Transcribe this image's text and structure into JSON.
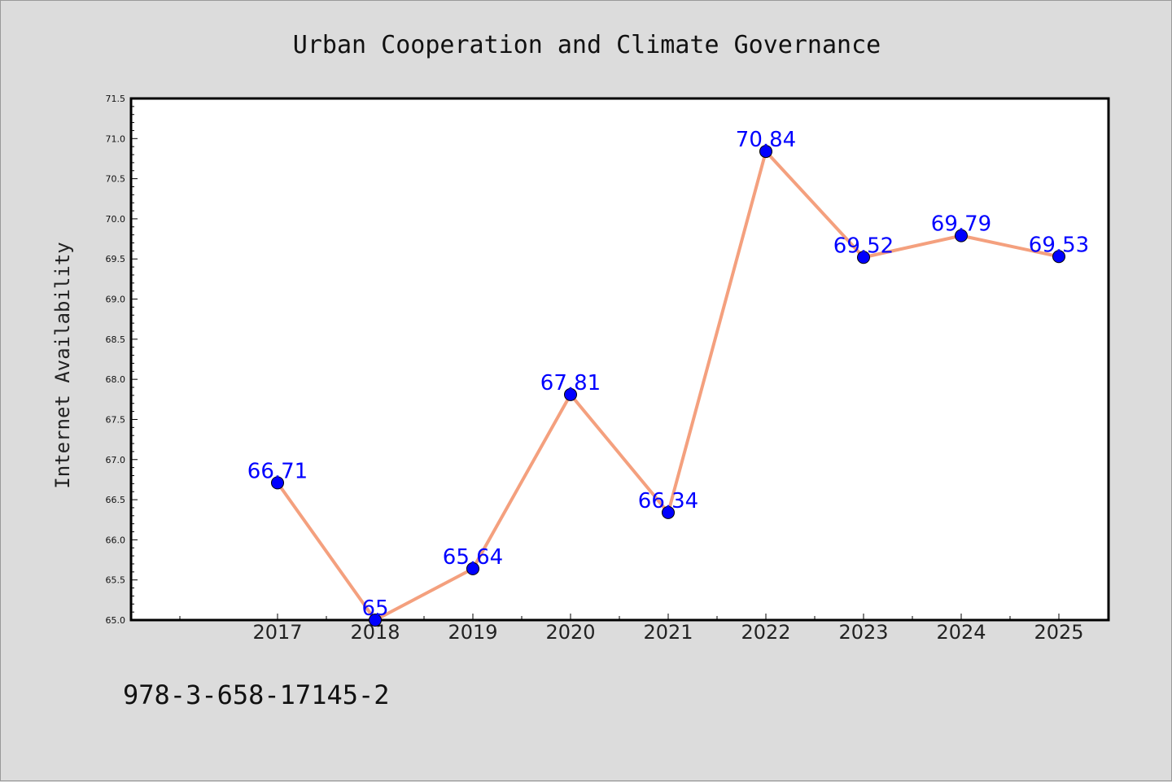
{
  "chart_data": {
    "type": "line",
    "title": "Urban Cooperation and Climate Governance",
    "xlabel": "",
    "ylabel": "Internet Availability",
    "categories": [
      "2017",
      "2018",
      "2019",
      "2020",
      "2021",
      "2022",
      "2023",
      "2024",
      "2025"
    ],
    "values": [
      66.71,
      65,
      65.64,
      67.81,
      66.34,
      70.84,
      69.52,
      69.79,
      69.53
    ],
    "data_labels": [
      "66.71",
      "65",
      "65.64",
      "67.81",
      "66.34",
      "70.84",
      "69.52",
      "69.79",
      "69.53"
    ],
    "ylim": [
      65.0,
      71.5
    ],
    "yticks": [
      "65.0",
      "65.5",
      "66.0",
      "66.5",
      "67.0",
      "67.5",
      "68.0",
      "68.5",
      "69.0",
      "69.5",
      "70.0",
      "70.5",
      "71.0",
      "71.5"
    ],
    "grid": false,
    "legend": "none",
    "line_color": "#f4a07e",
    "marker_color": "#0000ff",
    "label_color": "#0000ff"
  },
  "footer": {
    "isbn": "978-3-658-17145-2"
  }
}
